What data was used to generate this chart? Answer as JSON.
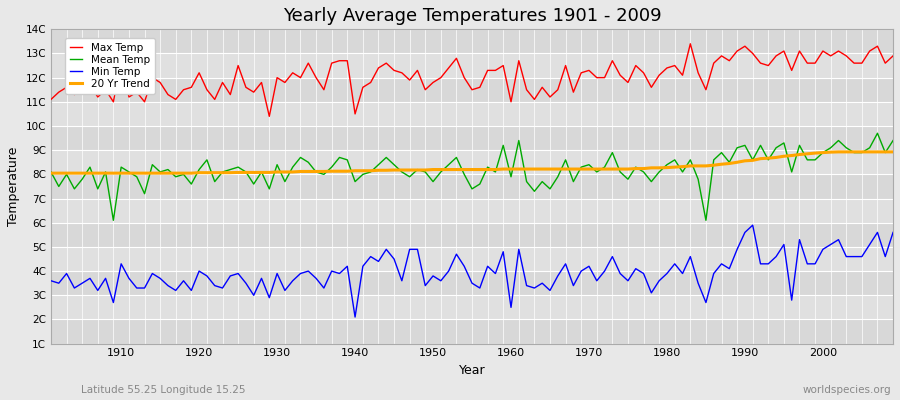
{
  "title": "Yearly Average Temperatures 1901 - 2009",
  "xlabel": "Year",
  "ylabel": "Temperature",
  "lat_lon_label": "Latitude 55.25 Longitude 15.25",
  "source_label": "worldspecies.org",
  "years": [
    1901,
    1902,
    1903,
    1904,
    1905,
    1906,
    1907,
    1908,
    1909,
    1910,
    1911,
    1912,
    1913,
    1914,
    1915,
    1916,
    1917,
    1918,
    1919,
    1920,
    1921,
    1922,
    1923,
    1924,
    1925,
    1926,
    1927,
    1928,
    1929,
    1930,
    1931,
    1932,
    1933,
    1934,
    1935,
    1936,
    1937,
    1938,
    1939,
    1940,
    1941,
    1942,
    1943,
    1944,
    1945,
    1946,
    1947,
    1948,
    1949,
    1950,
    1951,
    1952,
    1953,
    1954,
    1955,
    1956,
    1957,
    1958,
    1959,
    1960,
    1961,
    1962,
    1963,
    1964,
    1965,
    1966,
    1967,
    1968,
    1969,
    1970,
    1971,
    1972,
    1973,
    1974,
    1975,
    1976,
    1977,
    1978,
    1979,
    1980,
    1981,
    1982,
    1983,
    1984,
    1985,
    1986,
    1987,
    1988,
    1989,
    1990,
    1991,
    1992,
    1993,
    1994,
    1995,
    1996,
    1997,
    1998,
    1999,
    2000,
    2001,
    2002,
    2003,
    2004,
    2005,
    2006,
    2007,
    2008,
    2009
  ],
  "max_temp": [
    11.1,
    11.4,
    11.6,
    11.3,
    11.5,
    11.7,
    11.2,
    11.5,
    11.0,
    12.7,
    11.2,
    11.4,
    11.0,
    12.0,
    11.8,
    11.3,
    11.1,
    11.5,
    11.6,
    12.2,
    11.5,
    11.1,
    11.8,
    11.3,
    12.5,
    11.6,
    11.4,
    11.8,
    10.4,
    12.0,
    11.8,
    12.2,
    12.0,
    12.6,
    12.0,
    11.5,
    12.6,
    12.7,
    12.7,
    10.5,
    11.6,
    11.8,
    12.4,
    12.6,
    12.3,
    12.2,
    11.9,
    12.3,
    11.5,
    11.8,
    12.0,
    12.4,
    12.8,
    12.0,
    11.5,
    11.6,
    12.3,
    12.3,
    12.5,
    11.0,
    12.7,
    11.5,
    11.1,
    11.6,
    11.2,
    11.5,
    12.5,
    11.4,
    12.2,
    12.3,
    12.0,
    12.0,
    12.7,
    12.1,
    11.8,
    12.5,
    12.2,
    11.6,
    12.1,
    12.4,
    12.5,
    12.1,
    13.4,
    12.2,
    11.5,
    12.6,
    12.9,
    12.7,
    13.1,
    13.3,
    13.0,
    12.6,
    12.5,
    12.9,
    13.1,
    12.3,
    13.1,
    12.6,
    12.6,
    13.1,
    12.9,
    13.1,
    12.9,
    12.6,
    12.6,
    13.1,
    13.3,
    12.6,
    12.9
  ],
  "mean_temp": [
    8.1,
    7.5,
    8.0,
    7.4,
    7.8,
    8.3,
    7.4,
    8.1,
    6.1,
    8.3,
    8.1,
    7.9,
    7.2,
    8.4,
    8.1,
    8.2,
    7.9,
    8.0,
    7.6,
    8.2,
    8.6,
    7.7,
    8.1,
    8.2,
    8.3,
    8.1,
    7.6,
    8.1,
    7.4,
    8.4,
    7.7,
    8.3,
    8.7,
    8.5,
    8.1,
    8.0,
    8.3,
    8.7,
    8.6,
    7.7,
    8.0,
    8.1,
    8.4,
    8.7,
    8.4,
    8.1,
    7.9,
    8.2,
    8.1,
    7.7,
    8.1,
    8.4,
    8.7,
    8.0,
    7.4,
    7.6,
    8.3,
    8.1,
    9.2,
    7.9,
    9.4,
    7.7,
    7.3,
    7.7,
    7.4,
    7.9,
    8.6,
    7.7,
    8.3,
    8.4,
    8.1,
    8.3,
    8.9,
    8.1,
    7.8,
    8.3,
    8.1,
    7.7,
    8.1,
    8.4,
    8.6,
    8.1,
    8.6,
    7.8,
    6.1,
    8.6,
    8.9,
    8.5,
    9.1,
    9.2,
    8.6,
    9.2,
    8.6,
    9.1,
    9.3,
    8.1,
    9.2,
    8.6,
    8.6,
    8.9,
    9.1,
    9.4,
    9.1,
    8.9,
    8.9,
    9.1,
    9.7,
    8.9,
    9.4
  ],
  "min_temp": [
    3.6,
    3.5,
    3.9,
    3.3,
    3.5,
    3.7,
    3.2,
    3.7,
    2.7,
    4.3,
    3.7,
    3.3,
    3.3,
    3.9,
    3.7,
    3.4,
    3.2,
    3.6,
    3.2,
    4.0,
    3.8,
    3.4,
    3.3,
    3.8,
    3.9,
    3.5,
    3.0,
    3.7,
    2.9,
    3.9,
    3.2,
    3.6,
    3.9,
    4.0,
    3.7,
    3.3,
    4.0,
    3.9,
    4.2,
    2.1,
    4.2,
    4.6,
    4.4,
    4.9,
    4.5,
    3.6,
    4.9,
    4.9,
    3.4,
    3.8,
    3.6,
    4.0,
    4.7,
    4.2,
    3.5,
    3.3,
    4.2,
    3.9,
    4.8,
    2.5,
    4.9,
    3.4,
    3.3,
    3.5,
    3.2,
    3.8,
    4.3,
    3.4,
    4.0,
    4.2,
    3.6,
    4.0,
    4.6,
    3.9,
    3.6,
    4.1,
    3.9,
    3.1,
    3.6,
    3.9,
    4.3,
    3.9,
    4.6,
    3.5,
    2.7,
    3.9,
    4.3,
    4.1,
    4.9,
    5.6,
    5.9,
    4.3,
    4.3,
    4.6,
    5.1,
    2.8,
    5.3,
    4.3,
    4.3,
    4.9,
    5.1,
    5.3,
    4.6,
    4.6,
    4.6,
    5.1,
    5.6,
    4.6,
    5.6
  ],
  "trend": [
    8.05,
    8.05,
    8.05,
    8.05,
    8.05,
    8.05,
    8.05,
    8.05,
    8.05,
    8.05,
    8.05,
    8.05,
    8.05,
    8.05,
    8.05,
    8.05,
    8.05,
    8.05,
    8.05,
    8.07,
    8.07,
    8.07,
    8.07,
    8.07,
    8.08,
    8.08,
    8.08,
    8.08,
    8.08,
    8.1,
    8.1,
    8.1,
    8.12,
    8.12,
    8.12,
    8.12,
    8.13,
    8.13,
    8.13,
    8.15,
    8.15,
    8.15,
    8.17,
    8.17,
    8.18,
    8.18,
    8.18,
    8.18,
    8.18,
    8.2,
    8.2,
    8.2,
    8.2,
    8.2,
    8.2,
    8.2,
    8.2,
    8.2,
    8.22,
    8.22,
    8.22,
    8.22,
    8.22,
    8.22,
    8.22,
    8.22,
    8.22,
    8.22,
    8.22,
    8.22,
    8.22,
    8.22,
    8.22,
    8.22,
    8.22,
    8.24,
    8.24,
    8.27,
    8.27,
    8.28,
    8.3,
    8.32,
    8.35,
    8.35,
    8.35,
    8.38,
    8.42,
    8.45,
    8.5,
    8.56,
    8.58,
    8.65,
    8.67,
    8.7,
    8.75,
    8.78,
    8.82,
    8.85,
    8.88,
    8.9,
    8.92,
    8.93,
    8.93,
    8.93,
    8.93,
    8.93,
    8.93,
    8.93,
    8.93
  ],
  "max_color": "#ff0000",
  "mean_color": "#00aa00",
  "min_color": "#0000ff",
  "trend_color": "#ffa500",
  "bg_light": "#e8e8e8",
  "bg_dark": "#d8d8d8",
  "grid_color": "#ffffff",
  "ylim": [
    1,
    14
  ],
  "yticks": [
    1,
    2,
    3,
    4,
    5,
    6,
    7,
    8,
    9,
    10,
    11,
    12,
    13,
    14
  ],
  "ytick_labels": [
    "1C",
    "2C",
    "3C",
    "4C",
    "5C",
    "6C",
    "7C",
    "8C",
    "9C",
    "10C",
    "11C",
    "12C",
    "13C",
    "14C"
  ]
}
